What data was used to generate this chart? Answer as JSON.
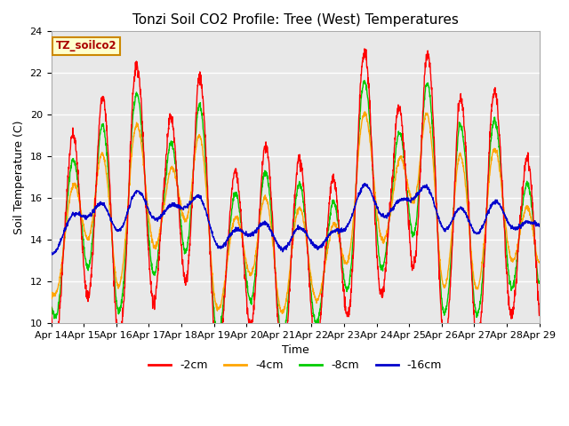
{
  "title": "Tonzi Soil CO2 Profile: Tree (West) Temperatures",
  "xlabel": "Time",
  "ylabel": "Soil Temperature (C)",
  "ylim": [
    10,
    24
  ],
  "legend_label": "TZ_soilco2",
  "series_labels": [
    "-2cm",
    "-4cm",
    "-8cm",
    "-16cm"
  ],
  "series_colors": [
    "#ff0000",
    "#ffa500",
    "#00cc00",
    "#0000cc"
  ],
  "xtick_labels": [
    "Apr 14",
    "Apr 15",
    "Apr 16",
    "Apr 17",
    "Apr 18",
    "Apr 19",
    "Apr 20",
    "Apr 21",
    "Apr 22",
    "Apr 23",
    "Apr 24",
    "Apr 25",
    "Apr 26",
    "Apr 27",
    "Apr 28",
    "Apr 29"
  ],
  "background_color": "#ffffff",
  "plot_bg_color": "#e8e8e8",
  "grid_color": "#ffffff",
  "title_fontsize": 11,
  "label_fontsize": 9,
  "tick_fontsize": 8,
  "linewidth": 1.0,
  "n_days": 15,
  "pts_per_day": 144
}
